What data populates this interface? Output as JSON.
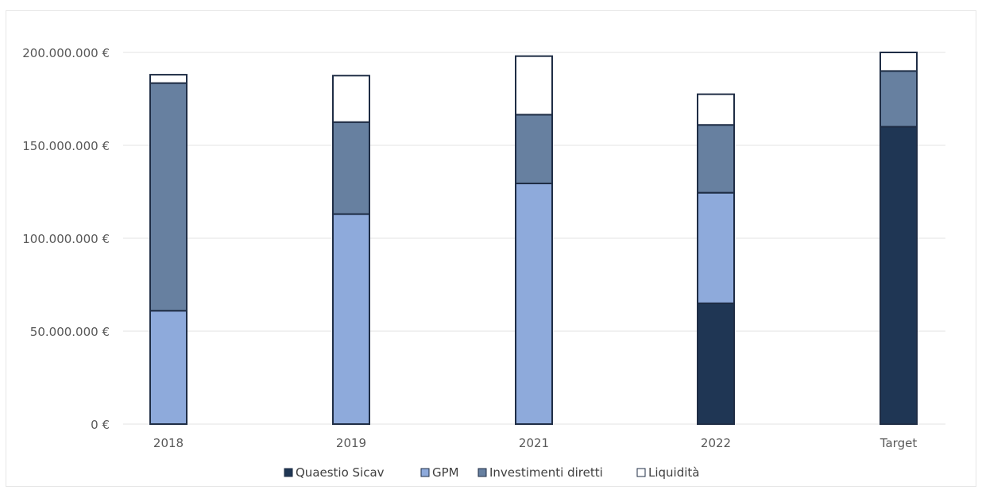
{
  "chart_data": {
    "type": "bar",
    "stacked": true,
    "categories": [
      "2018",
      "2019",
      "2021",
      "2022",
      "Target"
    ],
    "series": [
      {
        "name": "Quaestio Sicav",
        "color": "#1f3654",
        "values": [
          0,
          0,
          0,
          65000000,
          160000000
        ]
      },
      {
        "name": "GPM",
        "color": "#8eaadb",
        "values": [
          61000000,
          113000000,
          129500000,
          59500000,
          0
        ]
      },
      {
        "name": "Investimenti diretti",
        "color": "#6780a0",
        "values": [
          122500000,
          49500000,
          37000000,
          36500000,
          30000000
        ]
      },
      {
        "name": "Liquidità",
        "color": "#ffffff",
        "values": [
          4500000,
          25000000,
          31500000,
          16500000,
          10000000
        ]
      }
    ],
    "y_ticks": [
      "0 €",
      "50.000.000 €",
      "100.000.000 €",
      "150.000.000 €",
      "200.000.000 €"
    ],
    "ylim": [
      0,
      200000000
    ],
    "grid": true,
    "legend_position": "bottom",
    "title": "",
    "xlabel": "",
    "ylabel": ""
  }
}
